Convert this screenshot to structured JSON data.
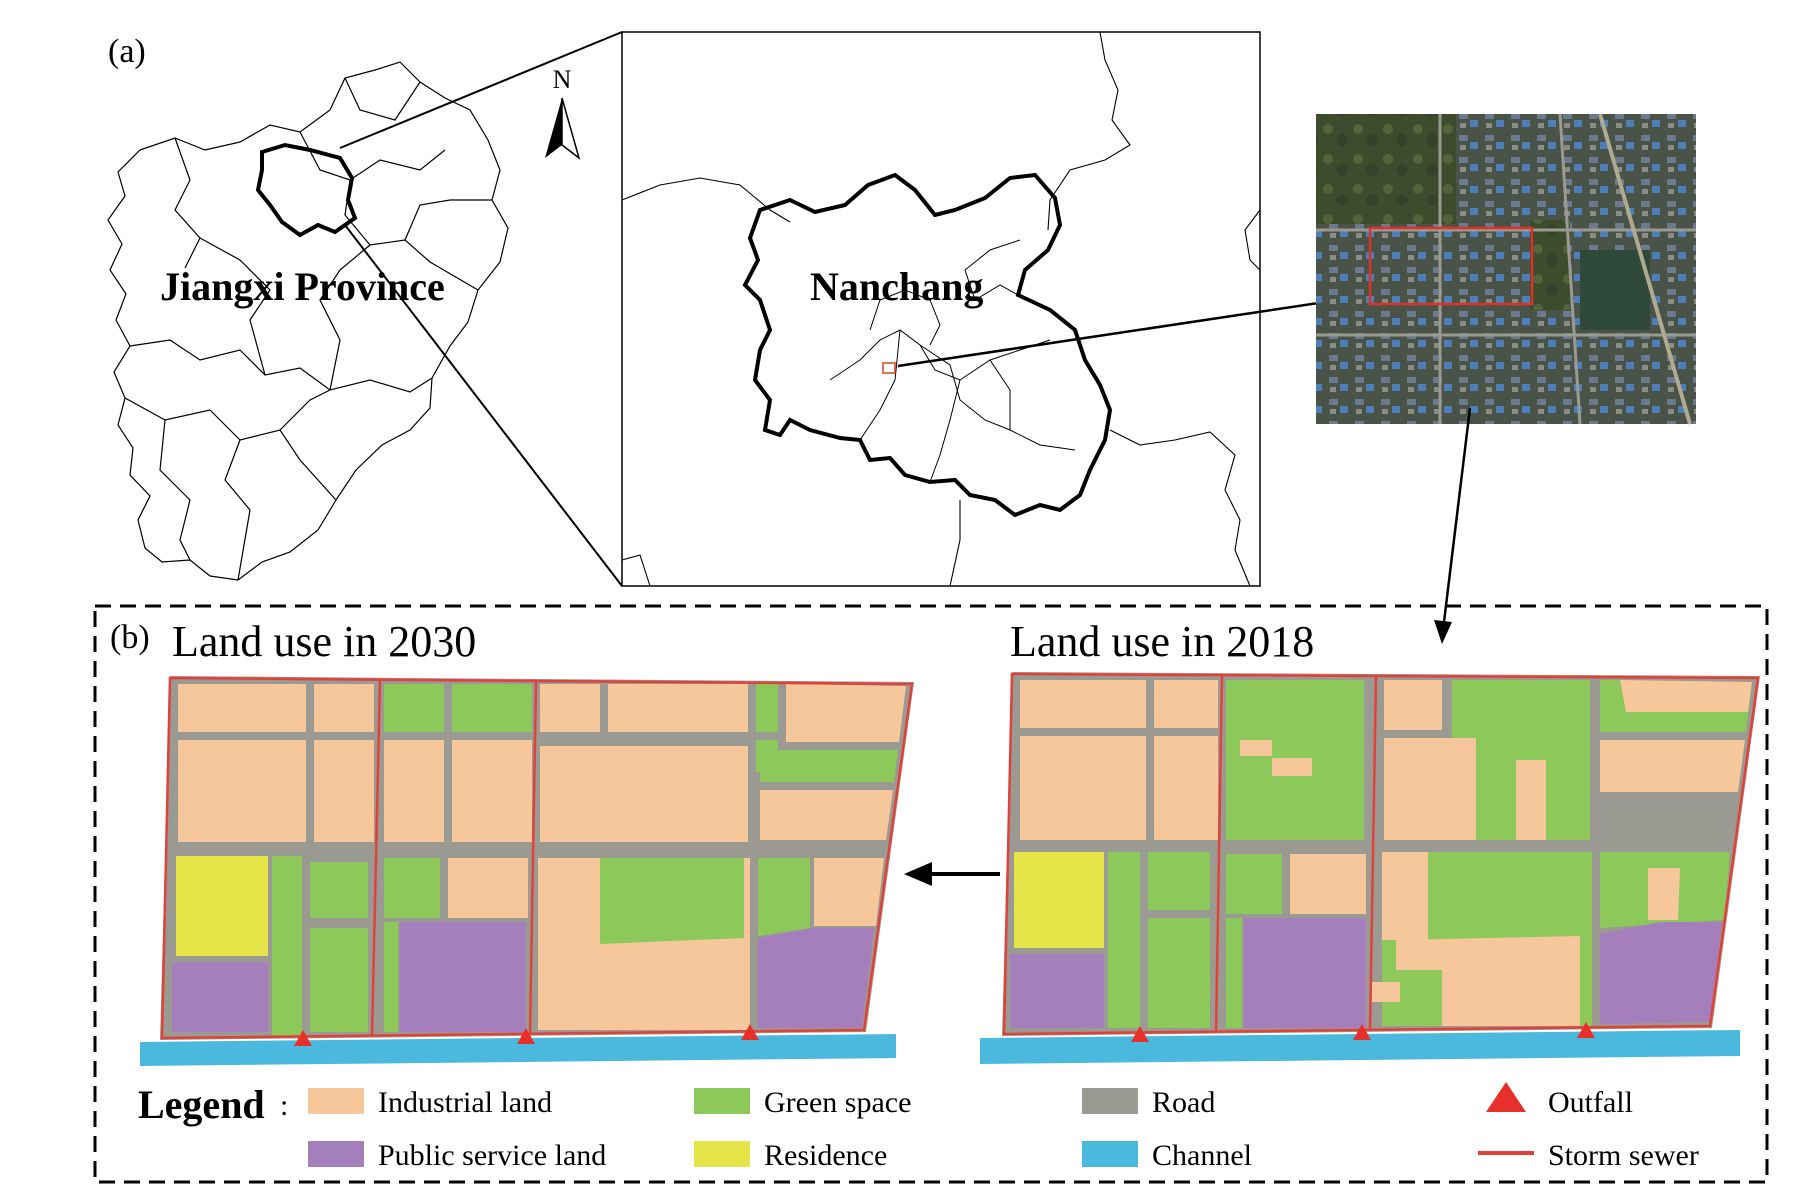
{
  "panel_a": {
    "label": "(a)",
    "province_label": "Jiangxi Province",
    "city_label": "Nanchang",
    "north_label": "N"
  },
  "panel_b": {
    "label": "(b)",
    "title_2030": "Land use in 2030",
    "title_2018": "Land use in 2018"
  },
  "legend": {
    "title": "Legend",
    "colon": ":",
    "items": [
      {
        "label": "Industrial land",
        "color": "#f7c79c",
        "kind": "rect"
      },
      {
        "label": "Green space",
        "color": "#8dc85a",
        "kind": "rect"
      },
      {
        "label": "Road",
        "color": "#9a9a92",
        "kind": "rect"
      },
      {
        "label": "Outfall",
        "color": "#e8302a",
        "kind": "triangle"
      },
      {
        "label": "Public service land",
        "color": "#a57fbc",
        "kind": "rect"
      },
      {
        "label": "Residence",
        "color": "#e5e54a",
        "kind": "rect"
      },
      {
        "label": "Channel",
        "color": "#4bb8de",
        "kind": "rect"
      },
      {
        "label": "Storm sewer",
        "color": "#e2413a",
        "kind": "line"
      }
    ]
  },
  "colors": {
    "industrial": "#f7c79c",
    "green": "#8dc85a",
    "road": "#9a9a92",
    "public": "#a57fbc",
    "residence": "#e5e54a",
    "channel": "#4bb8de",
    "sewer": "#e2413a",
    "outfall": "#e8302a"
  }
}
